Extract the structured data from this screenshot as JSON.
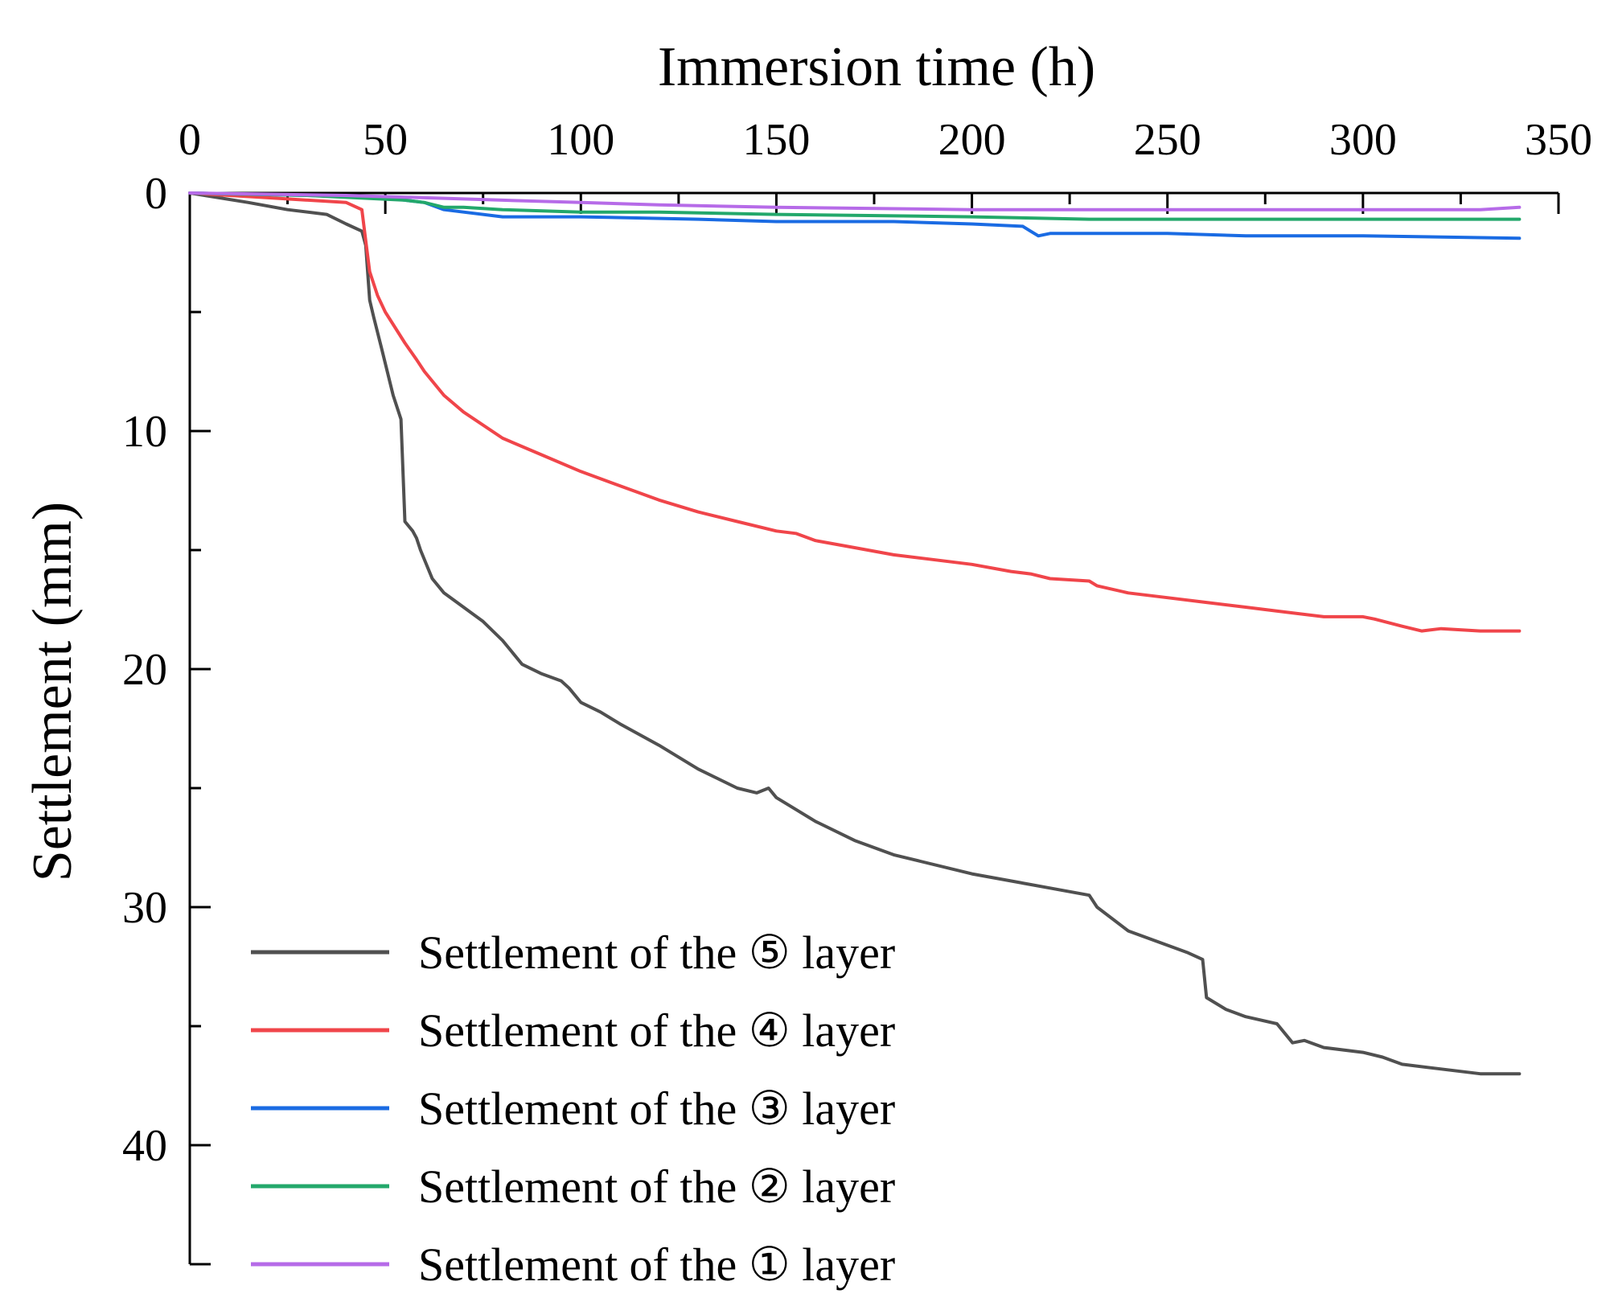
{
  "chart_data": {
    "type": "line",
    "title": "",
    "xlabel": "Immersion time (h)",
    "ylabel": "Settlement (mm)",
    "xlim": [
      0,
      350
    ],
    "ylim": [
      0,
      45
    ],
    "y_inverted": true,
    "x_axis_position": "top",
    "x_ticks": [
      0,
      50,
      100,
      150,
      200,
      250,
      300,
      350
    ],
    "y_ticks": [
      0,
      10,
      20,
      30,
      40
    ],
    "x_tick_labels": [
      "0",
      "50",
      "100",
      "150",
      "200",
      "250",
      "300",
      "350"
    ],
    "y_tick_labels": [
      "0",
      "10",
      "20",
      "30",
      "40"
    ],
    "grid": false,
    "legend_position": "bottom-left",
    "series": [
      {
        "name": "Settlement of the ⑤ layer",
        "color": "#505050",
        "x": [
          0,
          15,
          25,
          35,
          40,
          44,
          45,
          46,
          47,
          49,
          52,
          54,
          55,
          57,
          58,
          59,
          62,
          65,
          70,
          75,
          80,
          85,
          90,
          95,
          97,
          100,
          105,
          110,
          120,
          130,
          140,
          145,
          148,
          150,
          155,
          160,
          170,
          180,
          200,
          220,
          230,
          232,
          240,
          250,
          255,
          259,
          260,
          265,
          270,
          278,
          282,
          285,
          290,
          300,
          305,
          310,
          320,
          330,
          340
        ],
        "y": [
          0,
          0.4,
          0.7,
          0.9,
          1.3,
          1.6,
          2.2,
          4.5,
          5.2,
          6.5,
          8.5,
          9.5,
          13.8,
          14.2,
          14.5,
          15.0,
          16.2,
          16.8,
          17.4,
          18.0,
          18.8,
          19.8,
          20.2,
          20.5,
          20.8,
          21.4,
          21.8,
          22.3,
          23.2,
          24.2,
          25.0,
          25.2,
          25.0,
          25.4,
          25.9,
          26.4,
          27.2,
          27.8,
          28.6,
          29.2,
          29.5,
          30.0,
          31.0,
          31.6,
          31.9,
          32.2,
          33.8,
          34.3,
          34.6,
          34.9,
          35.7,
          35.6,
          35.9,
          36.1,
          36.3,
          36.6,
          36.8,
          37.0,
          37.0
        ]
      },
      {
        "name": "Settlement of the ④ layer",
        "color": "#f0454a",
        "x": [
          0,
          20,
          40,
          44,
          45,
          46,
          48,
          50,
          55,
          58,
          60,
          65,
          70,
          80,
          90,
          100,
          110,
          120,
          130,
          140,
          150,
          155,
          160,
          170,
          180,
          190,
          200,
          210,
          215,
          220,
          230,
          232,
          240,
          250,
          260,
          270,
          280,
          290,
          300,
          303,
          310,
          315,
          320,
          330,
          340
        ],
        "y": [
          0,
          0.2,
          0.4,
          0.7,
          2.0,
          3.3,
          4.3,
          5.0,
          6.3,
          7.0,
          7.5,
          8.5,
          9.2,
          10.3,
          11.0,
          11.7,
          12.3,
          12.9,
          13.4,
          13.8,
          14.2,
          14.3,
          14.6,
          14.9,
          15.2,
          15.4,
          15.6,
          15.9,
          16.0,
          16.2,
          16.3,
          16.5,
          16.8,
          17.0,
          17.2,
          17.4,
          17.6,
          17.8,
          17.8,
          17.9,
          18.2,
          18.4,
          18.3,
          18.4,
          18.4
        ],
        "y_source_note": ""
      },
      {
        "name": "Settlement of the ③ layer",
        "color": "#1a6be3",
        "x": [
          0,
          30,
          50,
          55,
          60,
          65,
          70,
          80,
          100,
          130,
          150,
          180,
          200,
          213,
          215,
          217,
          220,
          250,
          270,
          300,
          340
        ],
        "y": [
          0,
          0.1,
          0.2,
          0.3,
          0.4,
          0.7,
          0.8,
          1.0,
          1.0,
          1.1,
          1.2,
          1.2,
          1.3,
          1.4,
          1.6,
          1.8,
          1.7,
          1.7,
          1.8,
          1.8,
          1.9
        ]
      },
      {
        "name": "Settlement of the ② layer",
        "color": "#23a86b",
        "x": [
          0,
          30,
          55,
          60,
          65,
          70,
          80,
          100,
          120,
          150,
          200,
          230,
          250,
          300,
          340
        ],
        "y": [
          0,
          0.1,
          0.3,
          0.4,
          0.6,
          0.6,
          0.7,
          0.8,
          0.8,
          0.9,
          1.0,
          1.1,
          1.1,
          1.1,
          1.1
        ]
      },
      {
        "name": "Settlement of the ① layer",
        "color": "#b66be8",
        "x": [
          0,
          40,
          60,
          80,
          100,
          120,
          150,
          200,
          250,
          300,
          330,
          340
        ],
        "y": [
          0,
          0.1,
          0.2,
          0.3,
          0.4,
          0.5,
          0.6,
          0.7,
          0.7,
          0.7,
          0.7,
          0.6
        ]
      }
    ]
  }
}
